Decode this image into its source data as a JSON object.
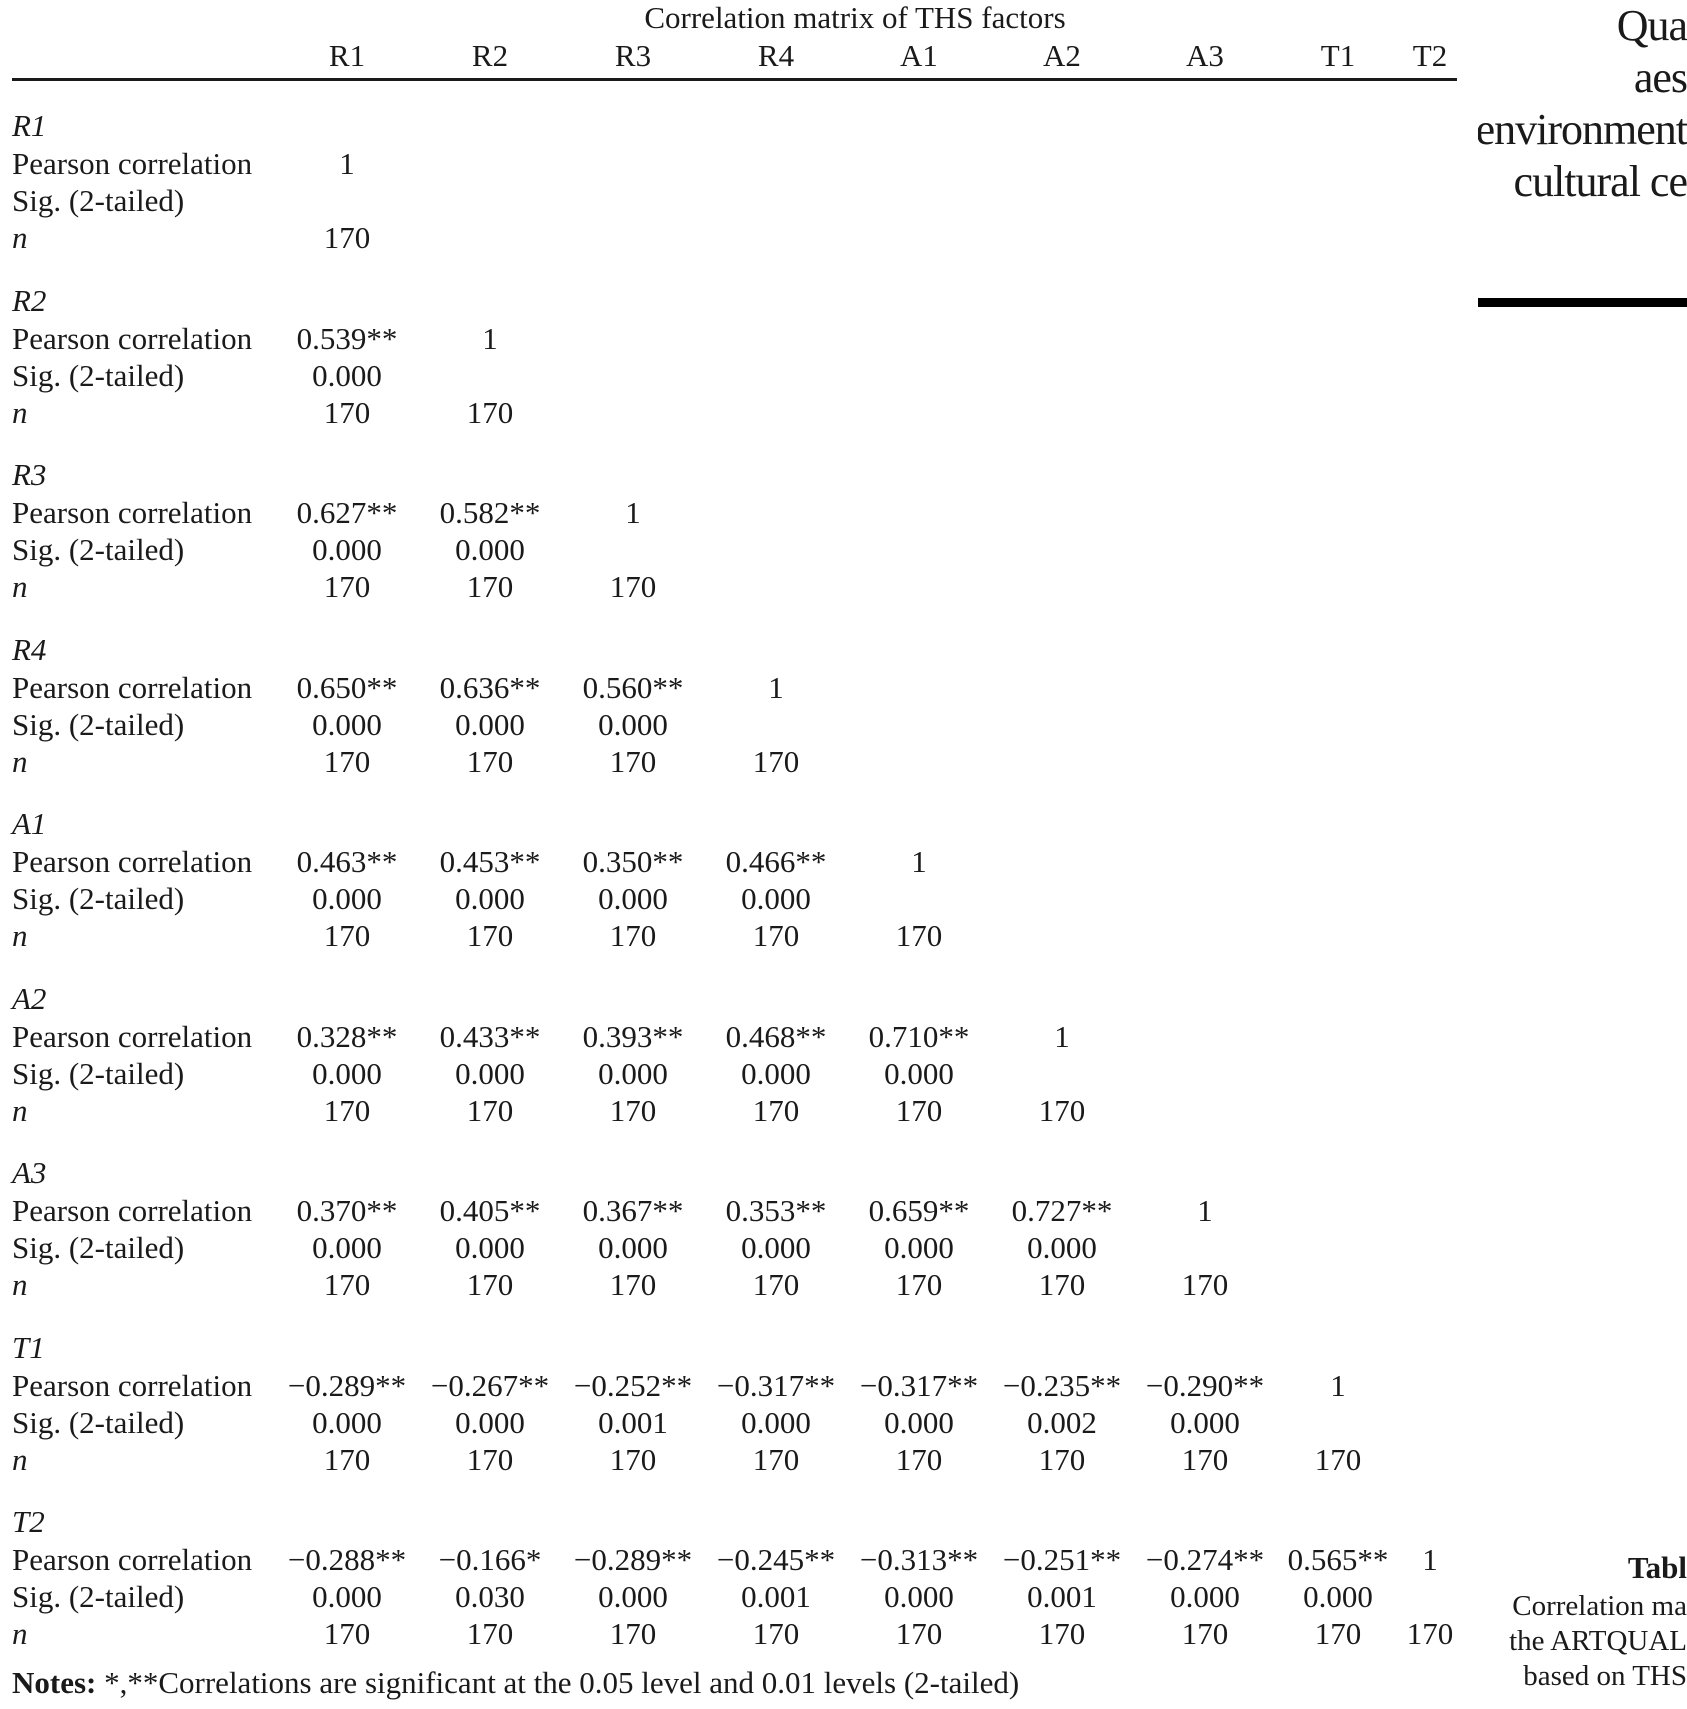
{
  "table": {
    "title": "Correlation matrix of THS factors",
    "columns": [
      "R1",
      "R2",
      "R3",
      "R4",
      "A1",
      "A2",
      "A3",
      "T1",
      "T2"
    ],
    "stat_labels": [
      "Pearson correlation",
      "Sig. (2-tailed)",
      "n"
    ],
    "groups": [
      {
        "name": "R1",
        "pearson": [
          "1"
        ],
        "sig": [
          ""
        ],
        "n": [
          "170"
        ]
      },
      {
        "name": "R2",
        "pearson": [
          "0.539**",
          "1"
        ],
        "sig": [
          "0.000",
          ""
        ],
        "n": [
          "170",
          "170"
        ]
      },
      {
        "name": "R3",
        "pearson": [
          "0.627**",
          "0.582**",
          "1"
        ],
        "sig": [
          "0.000",
          "0.000",
          ""
        ],
        "n": [
          "170",
          "170",
          "170"
        ]
      },
      {
        "name": "R4",
        "pearson": [
          "0.650**",
          "0.636**",
          "0.560**",
          "1"
        ],
        "sig": [
          "0.000",
          "0.000",
          "0.000",
          ""
        ],
        "n": [
          "170",
          "170",
          "170",
          "170"
        ]
      },
      {
        "name": "A1",
        "pearson": [
          "0.463**",
          "0.453**",
          "0.350**",
          "0.466**",
          "1"
        ],
        "sig": [
          "0.000",
          "0.000",
          "0.000",
          "0.000",
          ""
        ],
        "n": [
          "170",
          "170",
          "170",
          "170",
          "170"
        ]
      },
      {
        "name": "A2",
        "pearson": [
          "0.328**",
          "0.433**",
          "0.393**",
          "0.468**",
          "0.710**",
          "1"
        ],
        "sig": [
          "0.000",
          "0.000",
          "0.000",
          "0.000",
          "0.000",
          ""
        ],
        "n": [
          "170",
          "170",
          "170",
          "170",
          "170",
          "170"
        ]
      },
      {
        "name": "A3",
        "pearson": [
          "0.370**",
          "0.405**",
          "0.367**",
          "0.353**",
          "0.659**",
          "0.727**",
          "1"
        ],
        "sig": [
          "0.000",
          "0.000",
          "0.000",
          "0.000",
          "0.000",
          "0.000",
          ""
        ],
        "n": [
          "170",
          "170",
          "170",
          "170",
          "170",
          "170",
          "170"
        ]
      },
      {
        "name": "T1",
        "pearson": [
          "−0.289**",
          "−0.267**",
          "−0.252**",
          "−0.317**",
          "−0.317**",
          "−0.235**",
          "−0.290**",
          "1"
        ],
        "sig": [
          "0.000",
          "0.000",
          "0.001",
          "0.000",
          "0.000",
          "0.002",
          "0.000",
          ""
        ],
        "n": [
          "170",
          "170",
          "170",
          "170",
          "170",
          "170",
          "170",
          "170"
        ]
      },
      {
        "name": "T2",
        "pearson": [
          "−0.288**",
          "−0.166*",
          "−0.289**",
          "−0.245**",
          "−0.313**",
          "−0.251**",
          "−0.274**",
          "0.565**",
          "1"
        ],
        "sig": [
          "0.000",
          "0.030",
          "0.000",
          "0.001",
          "0.000",
          "0.001",
          "0.000",
          "0.000",
          ""
        ],
        "n": [
          "170",
          "170",
          "170",
          "170",
          "170",
          "170",
          "170",
          "170",
          "170"
        ]
      }
    ],
    "notes_label": "Notes:",
    "notes_text": " *,**Correlations are significant at the 0.05 level and 0.01 levels (2-tailed)"
  },
  "sidebar": {
    "title_lines": [
      "Qua",
      "aes",
      "environment",
      "cultural ce"
    ],
    "table_number": "Tabl",
    "caption_lines": [
      "Correlation ma",
      "the ARTQUAL",
      "based on THS"
    ]
  }
}
